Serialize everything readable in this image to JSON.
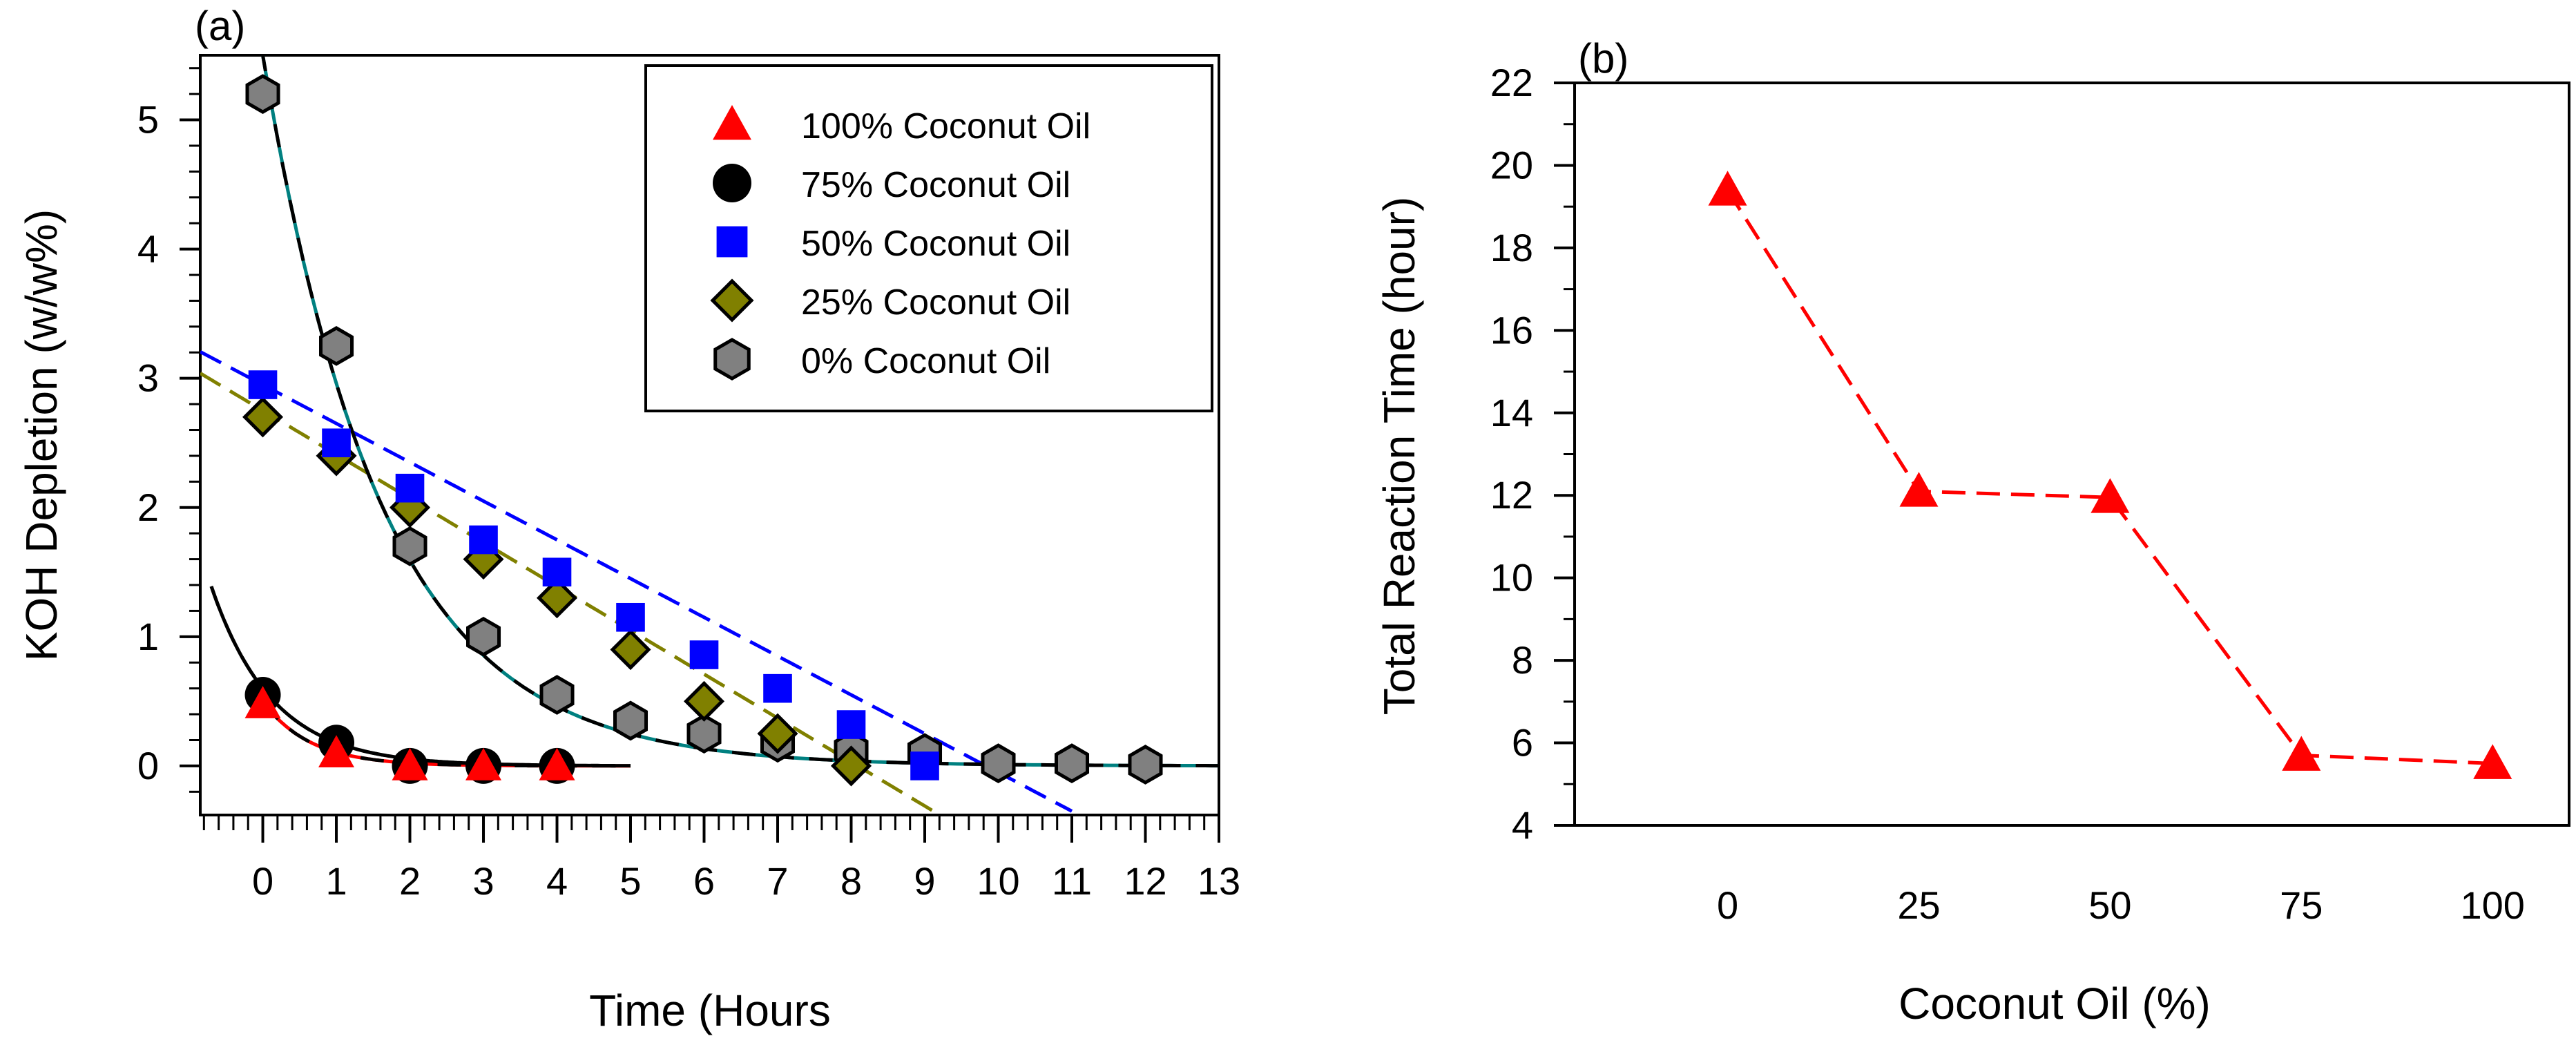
{
  "chart_data": [
    {
      "panel": "(a)",
      "type": "scatter",
      "xlabel": "Time (Hours",
      "ylabel": "KOH Depletion (w/w%)",
      "xlim": [
        -0.85,
        13
      ],
      "ylim": [
        -0.38,
        5.5
      ],
      "xticks": [
        "0",
        "1",
        "2",
        "3",
        "4",
        "5",
        "6",
        "7",
        "8",
        "9",
        "10",
        "11",
        "12",
        "13"
      ],
      "yticks": [
        "0",
        "1",
        "2",
        "3",
        "4",
        "5"
      ],
      "legend": [
        "100% Coconut Oil",
        "75% Coconut Oil",
        "50% Coconut Oil",
        "25% Coconut Oil",
        "0% Coconut Oil"
      ],
      "legend_position": "top-right",
      "series": [
        {
          "name": "100% Coconut Oil",
          "marker": "triangle",
          "color": "#ff0000",
          "x": [
            0,
            1,
            2,
            3,
            4
          ],
          "y": [
            0.48,
            0.1,
            0.0,
            0.0,
            0.0
          ],
          "fit": {
            "type": "exp",
            "a": 0.5,
            "k": 1.55,
            "x_range": [
              0,
              5
            ],
            "color": "#ff0000"
          }
        },
        {
          "name": "75% Coconut Oil",
          "marker": "circle",
          "color": "#000000",
          "x": [
            0,
            1,
            2,
            3,
            4
          ],
          "y": [
            0.55,
            0.18,
            0.0,
            0.0,
            0.0
          ],
          "fit": {
            "type": "exp",
            "a": 0.6,
            "k": 1.2,
            "x_range": [
              -0.7,
              5
            ],
            "color": "#000000"
          }
        },
        {
          "name": "50% Coconut Oil",
          "marker": "square",
          "color": "#0000ff",
          "x": [
            0,
            1,
            2,
            3,
            4,
            5,
            6,
            7,
            8,
            9
          ],
          "y": [
            2.95,
            2.5,
            2.15,
            1.75,
            1.5,
            1.15,
            0.86,
            0.6,
            0.32,
            0.0
          ],
          "fit": {
            "type": "linear",
            "intercept": 2.95,
            "slope": -0.3,
            "x_range": [
              -0.85,
              11
            ],
            "color": "#0000ff"
          }
        },
        {
          "name": "25% Coconut Oil",
          "marker": "diamond",
          "color": "#808000",
          "x": [
            0,
            1,
            2,
            3,
            4,
            5,
            6,
            7,
            8
          ],
          "y": [
            2.7,
            2.4,
            2.0,
            1.6,
            1.3,
            0.9,
            0.5,
            0.25,
            0.0
          ],
          "fit": {
            "type": "linear",
            "intercept": 2.75,
            "slope": -0.34,
            "x_range": [
              -0.85,
              9.2
            ],
            "color": "#808000"
          }
        },
        {
          "name": "0% Coconut Oil",
          "marker": "hexagon",
          "color": "#808080",
          "x": [
            0,
            1,
            2,
            3,
            4,
            5,
            6,
            7,
            8,
            9,
            10,
            11,
            12
          ],
          "y": [
            5.2,
            3.25,
            1.7,
            1.0,
            0.55,
            0.35,
            0.25,
            0.18,
            0.12,
            0.1,
            0.02,
            0.02,
            0.01
          ],
          "fit": {
            "type": "exp",
            "a": 5.5,
            "k": 0.62,
            "x_range": [
              -0.1,
              13
            ],
            "color": "#008080"
          }
        }
      ]
    },
    {
      "panel": "(b)",
      "type": "line",
      "xlabel": "Coconut Oil (%)",
      "ylabel": "Total Reaction Time (hour)",
      "xlim": [
        -20,
        110
      ],
      "ylim": [
        4,
        22
      ],
      "xticks": [
        "0",
        "25",
        "50",
        "75",
        "100"
      ],
      "yticks": [
        "4",
        "6",
        "8",
        "10",
        "12",
        "14",
        "16",
        "18",
        "20",
        "22"
      ],
      "series": [
        {
          "name": "Total Reaction Time",
          "marker": "triangle",
          "color": "#ff0000",
          "line_style": "dashed",
          "x": [
            0,
            25,
            50,
            75,
            100
          ],
          "y": [
            19.4,
            12.1,
            11.95,
            5.7,
            5.5
          ]
        }
      ]
    }
  ]
}
